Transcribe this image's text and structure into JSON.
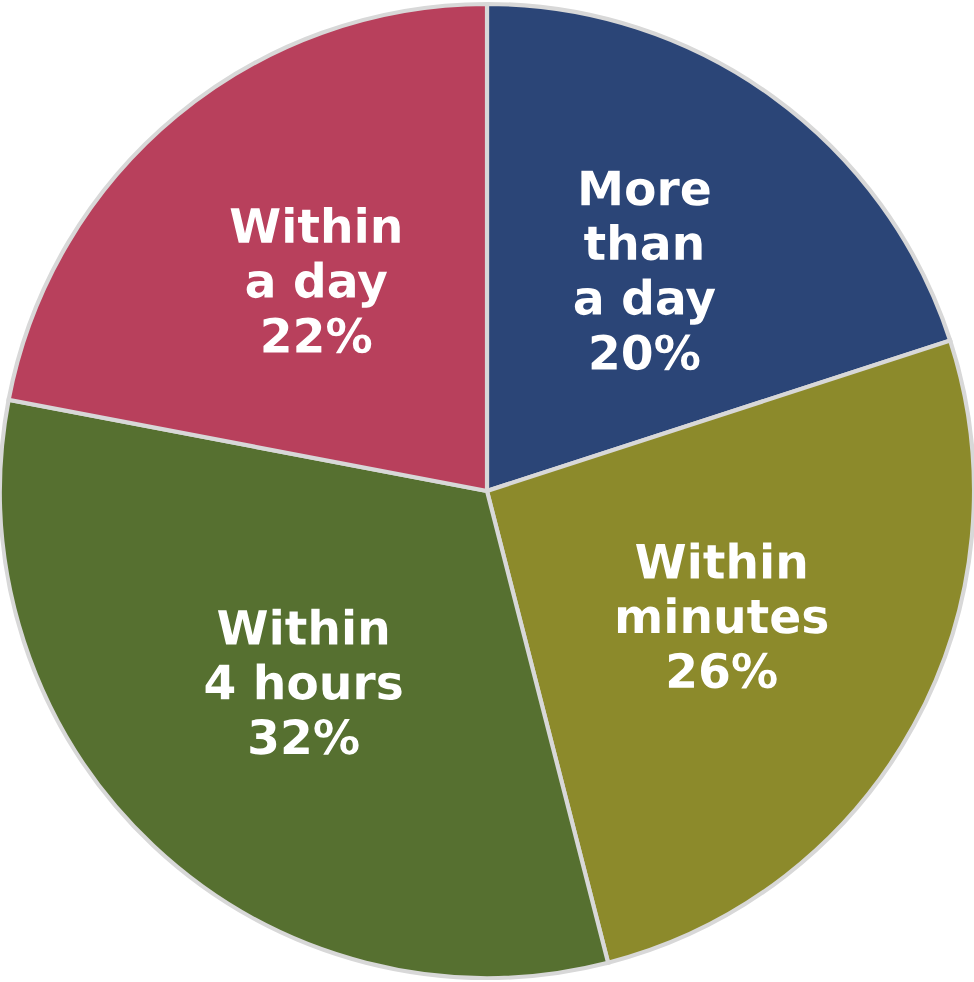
{
  "chart_data": {
    "type": "pie",
    "categories": [
      "More\nthan\na day",
      "Within\nminutes",
      "Within\n4 hours",
      "Within\na day"
    ],
    "values": [
      20,
      26,
      32,
      22
    ],
    "value_labels": [
      "20%",
      "26%",
      "32%",
      "22%"
    ],
    "colors": [
      "#2b4577",
      "#8c8a2b",
      "#567030",
      "#b8405c"
    ]
  }
}
